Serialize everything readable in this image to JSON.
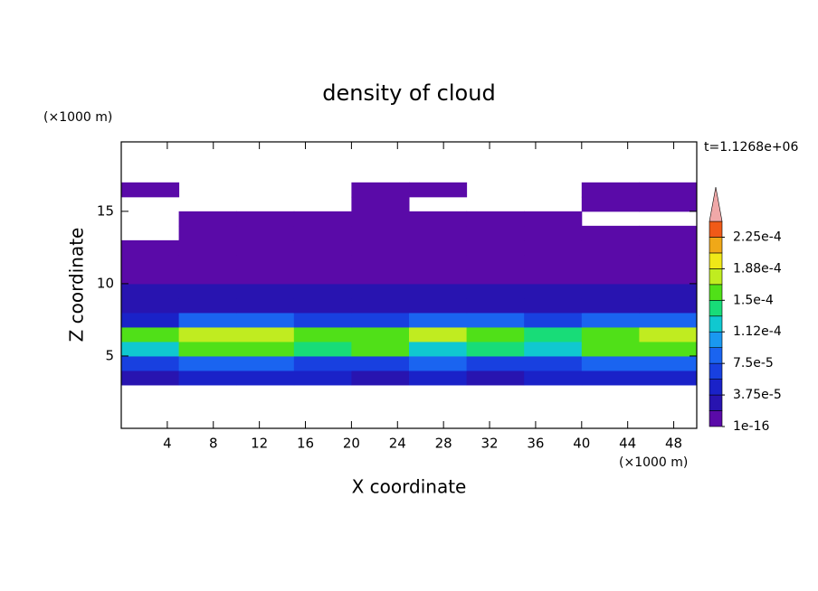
{
  "chart_data": {
    "type": "contour",
    "title": "density of cloud",
    "x_label": "X coordinate",
    "y_label": "Z coordinate",
    "x_unit": "(×1000 m)",
    "y_unit": "(×1000 m)",
    "annotation": "t=1.1268e+06",
    "xlim": [
      0,
      50
    ],
    "ylim": [
      0,
      19.8
    ],
    "xticks": [
      4,
      8,
      12,
      16,
      20,
      24,
      28,
      32,
      36,
      40,
      44,
      48
    ],
    "yticks": [
      5,
      10,
      15
    ],
    "field": {
      "x_edges": [
        0,
        5,
        10,
        15,
        20,
        25,
        30,
        35,
        40,
        45,
        50
      ],
      "z_edges": [
        3,
        4,
        5,
        6,
        7,
        8,
        9,
        10,
        11,
        12,
        13,
        14,
        15,
        16,
        17
      ],
      "values": [
        [
          3.5e-05,
          4e-05,
          4e-05,
          4e-05,
          3.5e-05,
          4e-05,
          3.5e-05,
          4e-05,
          4e-05,
          4e-05
        ],
        [
          7e-05,
          8e-05,
          8e-05,
          7e-05,
          7e-05,
          8e-05,
          7e-05,
          7e-05,
          8e-05,
          8e-05
        ],
        [
          0.00013,
          0.00015,
          0.00016,
          0.00014,
          0.00015,
          0.00013,
          0.00014,
          0.00012,
          0.00015,
          0.00016
        ],
        [
          0.00015,
          0.00017,
          0.00018,
          0.00016,
          0.00016,
          0.00017,
          0.00016,
          0.00014,
          0.00016,
          0.00018
        ],
        [
          5e-05,
          8e-05,
          9e-05,
          6e-05,
          7e-05,
          8e-05,
          9e-05,
          6e-05,
          8e-05,
          9e-05
        ],
        [
          3e-05,
          3e-05,
          3e-05,
          3e-05,
          2.5e-05,
          3e-05,
          3e-05,
          3e-05,
          3e-05,
          3e-05
        ],
        [
          2e-05,
          2e-05,
          2e-05,
          2e-05,
          2e-05,
          2e-05,
          2e-05,
          2e-05,
          2e-05,
          2e-05
        ],
        [
          1e-05,
          1e-05,
          1e-05,
          1e-05,
          1e-05,
          1e-05,
          1e-05,
          1e-05,
          1e-05,
          1e-05
        ],
        [
          6e-06,
          6e-06,
          6e-06,
          6e-06,
          6e-06,
          6e-06,
          6e-06,
          6e-06,
          6e-06,
          6e-06
        ],
        [
          3e-06,
          3e-06,
          3e-06,
          3e-06,
          3e-06,
          3e-06,
          3e-06,
          3e-06,
          3e-06,
          3e-06
        ],
        [
          null,
          3e-06,
          3e-06,
          3e-06,
          3e-06,
          3e-06,
          3e-06,
          3e-06,
          3e-06,
          3e-06
        ],
        [
          null,
          3e-06,
          3e-06,
          3e-06,
          3e-06,
          3e-06,
          3e-06,
          3e-06,
          null,
          null
        ],
        [
          null,
          null,
          null,
          null,
          3e-06,
          null,
          null,
          null,
          3e-06,
          3e-06
        ],
        [
          2e-06,
          null,
          null,
          null,
          3e-06,
          3e-06,
          null,
          null,
          3e-06,
          3e-06
        ]
      ]
    },
    "levels": [
      1e-16,
      1.875e-05,
      3.75e-05,
      5.625e-05,
      7.5e-05,
      9.375e-05,
      0.0001125,
      0.00013125,
      0.00015,
      0.00016875,
      0.0001875,
      0.00020625,
      0.000225,
      0.00024375
    ],
    "colors": [
      "#5a0aa8",
      "#2814b0",
      "#1a22c8",
      "#1840e0",
      "#1a64f0",
      "#1a98f0",
      "#10c8d0",
      "#18dc78",
      "#50e018",
      "#c0ec20",
      "#f0e818",
      "#f0a818",
      "#f05a18"
    ],
    "extend_color": "#f0a8a8",
    "colorbar_ticks": [
      {
        "value": 1e-16,
        "label": "1e-16"
      },
      {
        "value": 3.75e-05,
        "label": "3.75e-5"
      },
      {
        "value": 7.5e-05,
        "label": "7.5e-5"
      },
      {
        "value": 0.0001125,
        "label": "1.12e-4"
      },
      {
        "value": 0.00015,
        "label": "1.5e-4"
      },
      {
        "value": 0.0001875,
        "label": "1.88e-4"
      },
      {
        "value": 0.000225,
        "label": "2.25e-4"
      }
    ]
  }
}
